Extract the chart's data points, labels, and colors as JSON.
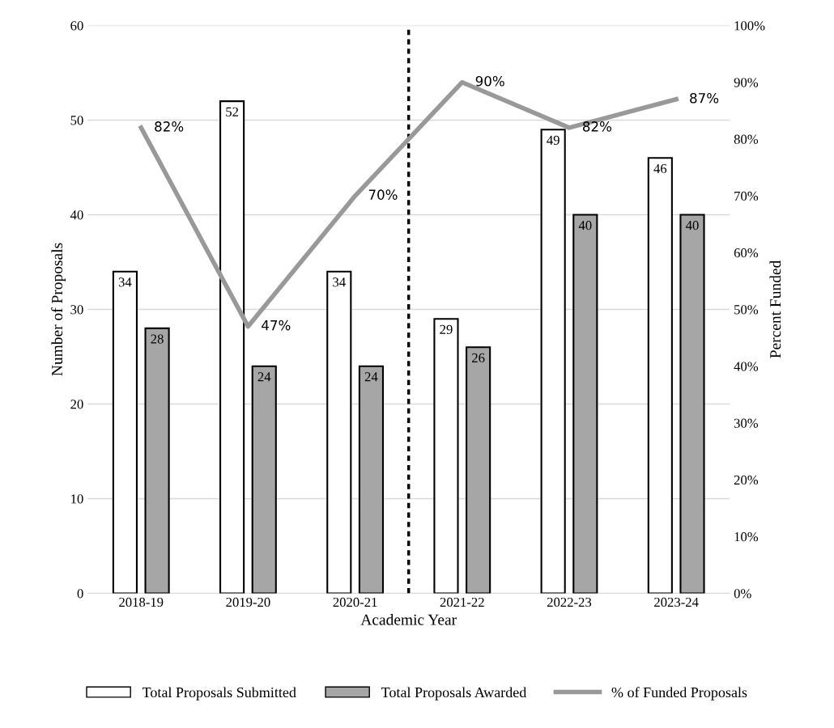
{
  "chart_data": {
    "type": "bar",
    "xlabel": "Academic Year",
    "ylabel": "Number of Proposals",
    "y2label": "Percent Funded",
    "categories": [
      "2018-19",
      "2019-20",
      "2020-21",
      "2021-22",
      "2022-23",
      "2023-24"
    ],
    "series": [
      {
        "name": "Total Proposals Submitted",
        "color": "#ffffff",
        "values": [
          34,
          52,
          34,
          29,
          49,
          46
        ],
        "value_labels": [
          "34",
          "52",
          "34",
          "29",
          "49",
          "46"
        ]
      },
      {
        "name": "Total Proposals Awarded",
        "color": "#a6a6a6",
        "values": [
          28,
          24,
          24,
          26,
          40,
          40
        ],
        "value_labels": [
          "28",
          "24",
          "24",
          "26",
          "40",
          "40"
        ]
      },
      {
        "name": "% of Funded Proposals",
        "type": "line",
        "axis": "y2",
        "color": "#999999",
        "values": [
          82,
          47,
          70,
          90,
          82,
          87
        ],
        "value_labels": [
          "82%",
          "47%",
          "70%",
          "90%",
          "82%",
          "87%"
        ]
      }
    ],
    "ylim": [
      0,
      60
    ],
    "yticks": [
      0,
      10,
      20,
      30,
      40,
      50,
      60
    ],
    "y2lim": [
      0,
      100
    ],
    "y2ticks": [
      {
        "value": 0,
        "label": "0%"
      },
      {
        "value": 10,
        "label": "10%"
      },
      {
        "value": 20,
        "label": "20%"
      },
      {
        "value": 30,
        "label": "30%"
      },
      {
        "value": 40,
        "label": "40%"
      },
      {
        "value": 50,
        "label": "50%"
      },
      {
        "value": 60,
        "label": "60%"
      },
      {
        "value": 70,
        "label": "70%"
      },
      {
        "value": 80,
        "label": "80%"
      },
      {
        "value": 90,
        "label": "90%"
      },
      {
        "value": 100,
        "label": "100%"
      }
    ],
    "grid": "y",
    "legend": "bottom",
    "marker": "none",
    "line_style": "solid"
  }
}
